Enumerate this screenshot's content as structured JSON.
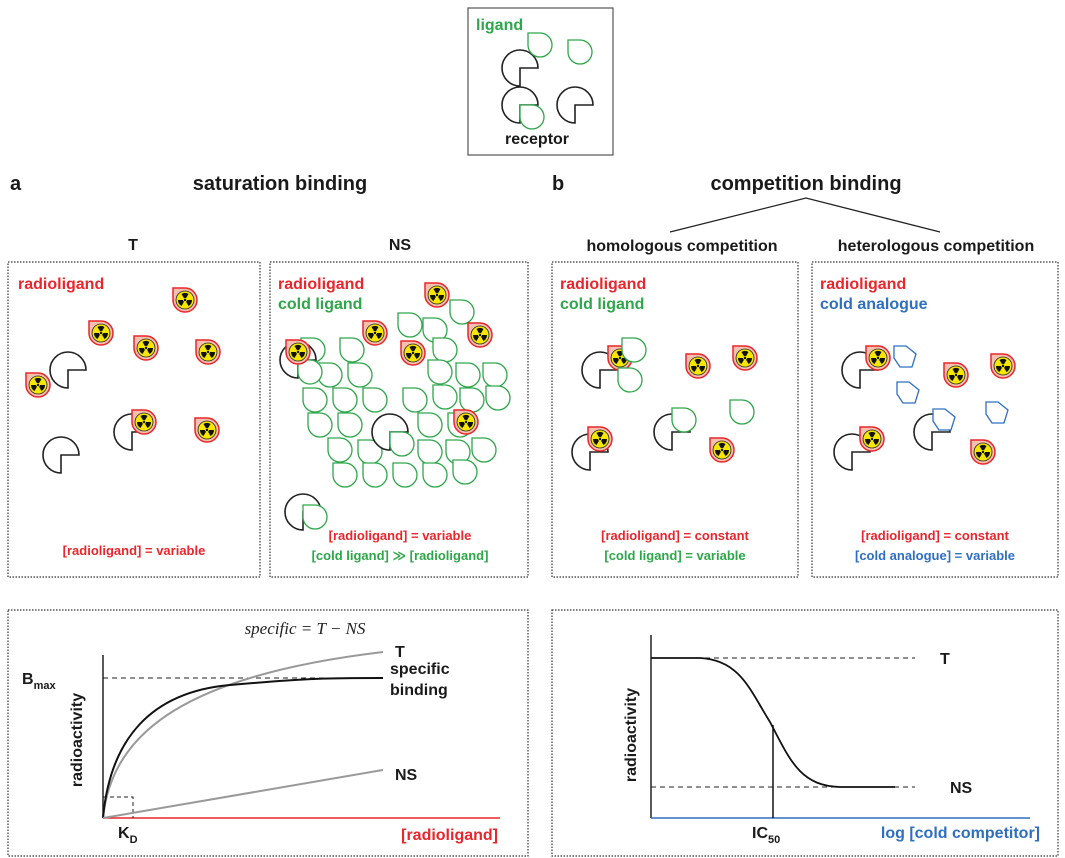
{
  "legend": {
    "ligand": "ligand",
    "receptor": "receptor"
  },
  "panel_a": {
    "label": "a",
    "title": "saturation binding",
    "boxes": [
      {
        "heading": "T",
        "lines": [
          "radioligand"
        ],
        "conditions": [
          "[radioligand] = variable"
        ]
      },
      {
        "heading": "NS",
        "lines": [
          "radioligand",
          "cold ligand"
        ],
        "conditions": [
          "[radioligand] = variable",
          "[cold ligand] ≫ [radioligand]"
        ]
      }
    ],
    "graph": {
      "formula": "specific = T − NS",
      "y_label": "radioactivity",
      "x_label": "[radioligand]",
      "bmax": {
        "base": "B",
        "sub": "max"
      },
      "kd": {
        "base": "K",
        "sub": "D"
      },
      "curve_t": "T",
      "curve_specific": [
        "specific",
        "binding"
      ],
      "curve_ns": "NS"
    }
  },
  "panel_b": {
    "label": "b",
    "title": "competition binding",
    "boxes": [
      {
        "heading": "homologous competition",
        "lines": [
          "radioligand",
          "cold ligand"
        ],
        "conditions": [
          "[radioligand] = constant",
          "[cold ligand] = variable"
        ]
      },
      {
        "heading": "heterologous competition",
        "lines": [
          "radioligand",
          "cold analogue"
        ],
        "conditions": [
          "[radioligand] = constant",
          "[cold analogue] = variable"
        ]
      }
    ],
    "graph": {
      "y_label": "radioactivity",
      "x_label": "log [cold competitor]",
      "ic50": {
        "base": "IC",
        "sub": "50"
      },
      "curve_t": "T",
      "curve_ns": "NS"
    }
  }
}
